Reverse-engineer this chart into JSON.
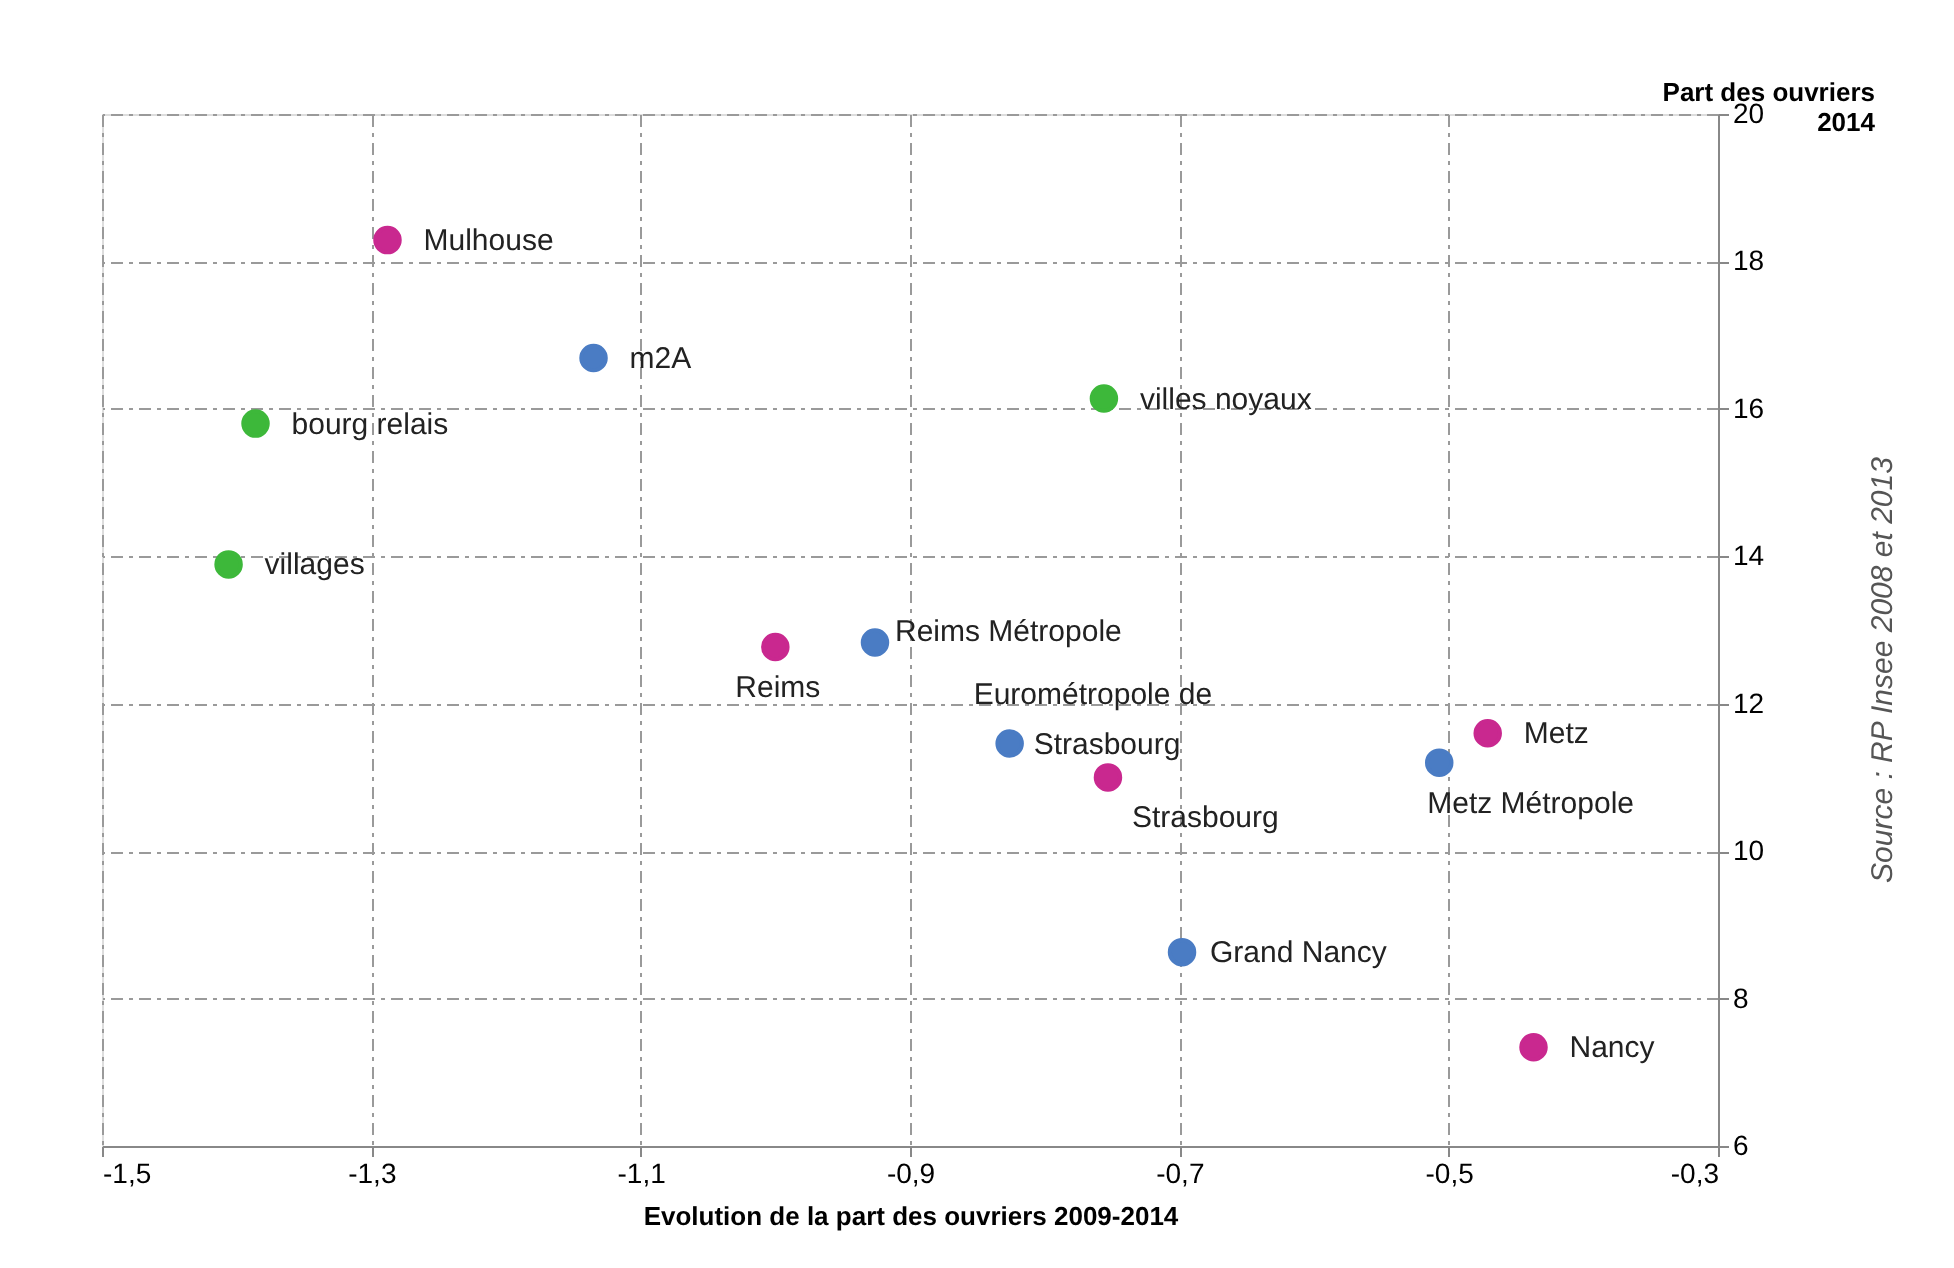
{
  "chart_data": {
    "type": "scatter",
    "xlabel": "Evolution de la part des ouvriers 2009-2014",
    "ylabel": "Part des ouvriers 2014",
    "series": [
      {
        "color": "#c9288f",
        "x": [
          -1.288,
          -1.0,
          -0.753,
          -0.471,
          -0.437
        ],
        "values": [
          18.29,
          12.77,
          11.0,
          11.6,
          7.34
        ]
      },
      {
        "color": "#4a7cc4",
        "x": [
          -1.135,
          -0.926,
          -0.826,
          -0.507,
          -0.698
        ],
        "values": [
          16.69,
          12.83,
          11.46,
          11.2,
          8.63
        ]
      },
      {
        "color": "#3db83a",
        "x": [
          -1.386,
          -1.406,
          -0.756
        ],
        "values": [
          15.8,
          13.89,
          16.14
        ]
      }
    ],
    "xlim": [
      -1.5,
      -0.3
    ],
    "xticks": [
      {
        "value": -1.5,
        "label": "-1,5"
      },
      {
        "value": -1.3,
        "label": "-1,3"
      },
      {
        "value": -1.1,
        "label": "-1,1"
      },
      {
        "value": -0.9,
        "label": "-0,9"
      },
      {
        "value": -0.7,
        "label": "-0,7"
      },
      {
        "value": -0.5,
        "label": "-0,5"
      },
      {
        "value": -0.3,
        "label": "-0,3"
      }
    ],
    "ylim": [
      6,
      20
    ],
    "yticks": [
      6,
      8,
      10,
      12,
      14,
      16,
      18,
      20
    ],
    "grid": true,
    "annotations": [
      {
        "text": "Mulhouse",
        "x": -1.288,
        "y": 18.29
      },
      {
        "text": "m2A",
        "x": -1.135,
        "y": 16.69
      },
      {
        "text": "bourg relais",
        "x": -1.386,
        "y": 15.8
      },
      {
        "text": "villages",
        "x": -1.406,
        "y": 13.89
      },
      {
        "text": "villes noyaux",
        "x": -0.756,
        "y": 16.14
      },
      {
        "text": "Reims Métropole",
        "x": -0.926,
        "y": 12.83
      },
      {
        "text": "Reims",
        "x": -1.0,
        "y": 12.77
      },
      {
        "text": "Eurométropole de Strasbourg",
        "x": -0.826,
        "y": 11.46
      },
      {
        "text": "Strasbourg",
        "x": -0.753,
        "y": 11.0
      },
      {
        "text": "Metz",
        "x": -0.471,
        "y": 11.6
      },
      {
        "text": "Metz Métropole",
        "x": -0.507,
        "y": 11.2
      },
      {
        "text": "Grand Nancy",
        "x": -0.698,
        "y": 8.63
      },
      {
        "text": "Nancy",
        "x": -0.437,
        "y": 7.34
      },
      "Source : RP Insee 2008 et 2013"
    ]
  }
}
